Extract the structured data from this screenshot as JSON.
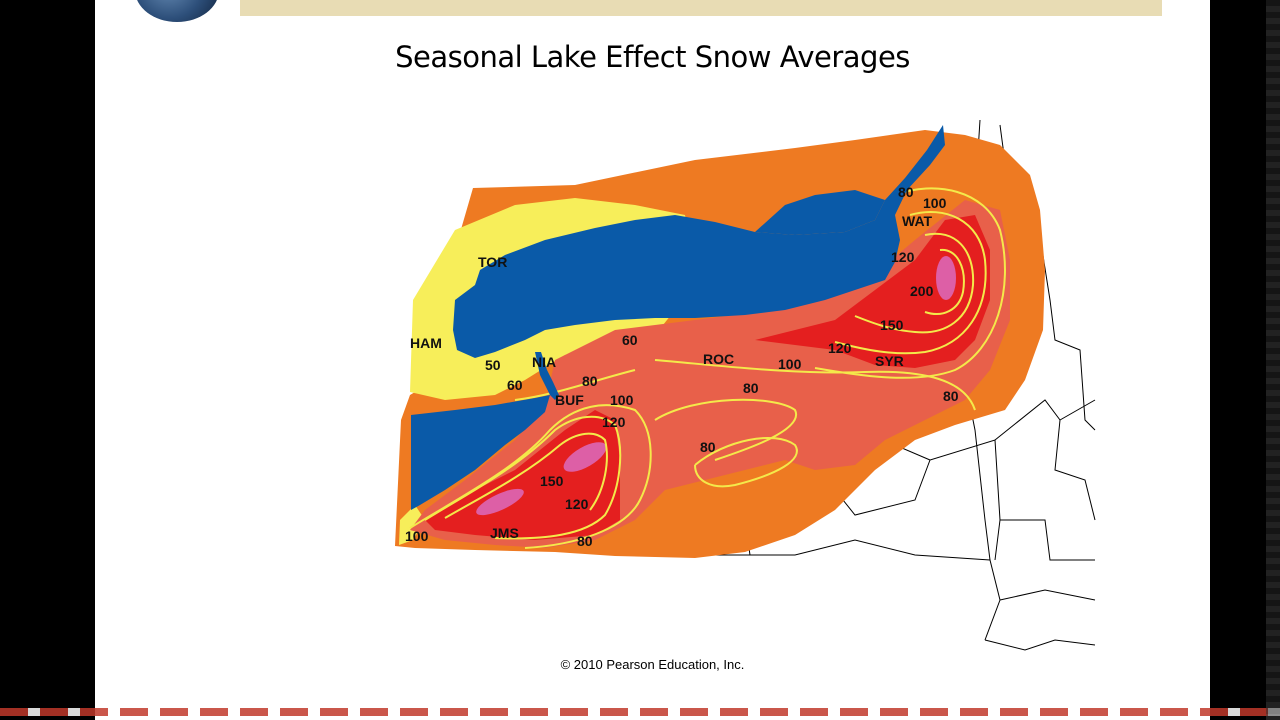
{
  "slide": {
    "title": "Seasonal Lake Effect Snow Averages",
    "copyright": "© 2010 Pearson Education, Inc."
  },
  "map": {
    "colors": {
      "lake": "#0a5aa8",
      "band_lt50": "#f7ee5a",
      "band_50_80": "#ee7a22",
      "band_80_120": "#e8604a",
      "band_120_200": "#e41f1f",
      "band_gt200": "#dd5fa6",
      "isoline": "#f4e94a"
    },
    "cities": [
      "TOR",
      "HAM",
      "NIA",
      "BUF",
      "ROC",
      "SYR",
      "WAT",
      "JMS"
    ],
    "contour_labels": [
      "80",
      "100",
      "120",
      "200",
      "150",
      "120",
      "100",
      "80",
      "60",
      "50",
      "60",
      "80",
      "100",
      "120",
      "80",
      "150",
      "120",
      "100",
      "80",
      "80"
    ]
  }
}
